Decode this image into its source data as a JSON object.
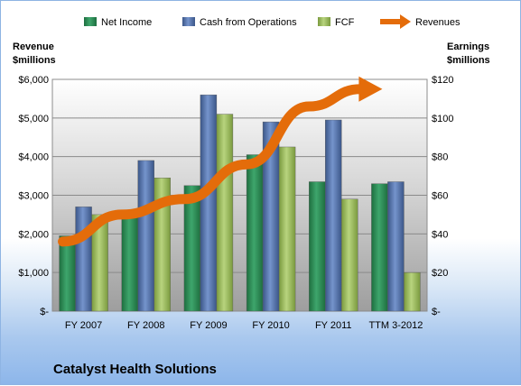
{
  "chart_data": {
    "type": "bar",
    "title": "Catalyst Health Solutions",
    "categories": [
      "FY 2007",
      "FY 2008",
      "FY 2009",
      "FY 2010",
      "FY 2011",
      "TTM 3-2012"
    ],
    "left_axis": {
      "label_line1": "Revenue",
      "label_line2": "$millions",
      "ylim": [
        0,
        6000
      ],
      "ticks": [
        "$-",
        "$1,000",
        "$2,000",
        "$3,000",
        "$4,000",
        "$5,000",
        "$6,000"
      ]
    },
    "right_axis": {
      "label_line1": "Earnings",
      "label_line2": "$millions",
      "ylim": [
        0,
        120
      ],
      "ticks": [
        "$-",
        "$20",
        "$40",
        "$60",
        "$80",
        "$100",
        "$120"
      ]
    },
    "series": [
      {
        "name": "Net Income",
        "axis": "right",
        "color": "#2e8b57",
        "values": [
          39,
          50,
          65,
          81,
          67,
          66
        ]
      },
      {
        "name": "Cash from Operations",
        "axis": "right",
        "color": "#4f6fa8",
        "values": [
          54,
          78,
          112,
          98,
          99,
          67
        ]
      },
      {
        "name": "FCF",
        "axis": "right",
        "color": "#9bbb59",
        "values": [
          50,
          69,
          102,
          85,
          58,
          20
        ]
      },
      {
        "name": "Revenues",
        "axis": "left",
        "type": "arrow",
        "color": "#e46c0a",
        "values": [
          1800,
          2500,
          2900,
          3800,
          5300,
          5750
        ]
      }
    ],
    "legend_position": "top",
    "grid": true
  }
}
